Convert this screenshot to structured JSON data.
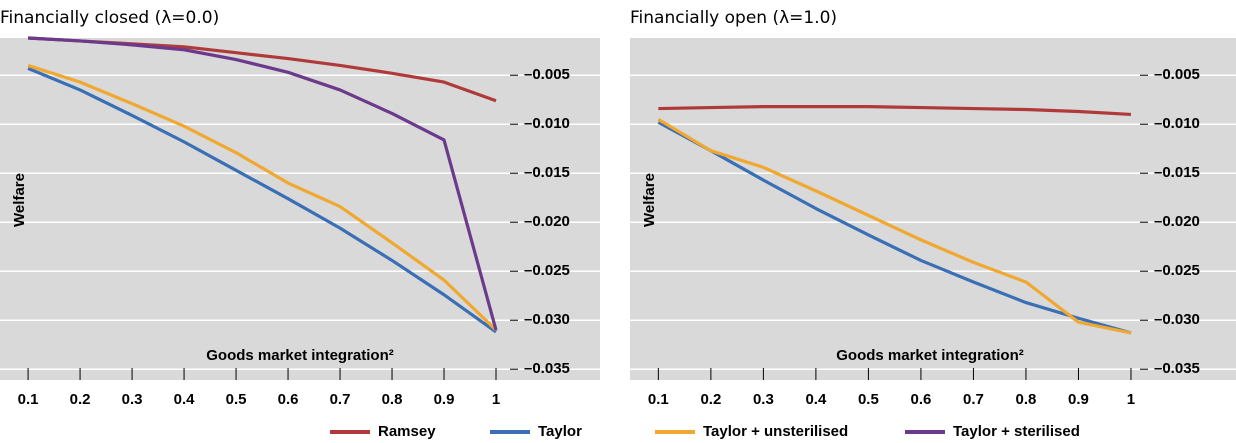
{
  "chart_data": [
    {
      "type": "line",
      "title": "Financially closed (λ=0.0)",
      "ylabel": "Welfare",
      "xlabel": "Goods market integration²",
      "x": [
        0.1,
        0.2,
        0.3,
        0.4,
        0.5,
        0.6,
        0.7,
        0.8,
        0.9,
        1
      ],
      "series": [
        {
          "name": "Ramsey",
          "color": "#b03a3a",
          "values": [
            -0.0012,
            -0.0015,
            -0.0018,
            -0.0021,
            -0.0027,
            -0.0033,
            -0.004,
            -0.0048,
            -0.0057,
            -0.0076
          ]
        },
        {
          "name": "Taylor",
          "color": "#3a6fb5",
          "values": [
            -0.0043,
            -0.0065,
            -0.0091,
            -0.0118,
            -0.0147,
            -0.0176,
            -0.0206,
            -0.0239,
            -0.0274,
            -0.0312
          ]
        },
        {
          "name": "Taylor + unsterilised",
          "color": "#f0a830",
          "values": [
            -0.004,
            -0.0057,
            -0.0079,
            -0.0102,
            -0.0129,
            -0.016,
            -0.0184,
            -0.0221,
            -0.0259,
            -0.031
          ]
        },
        {
          "name": "Taylor + sterilised",
          "color": "#6b3a8c",
          "values": [
            -0.0012,
            -0.0015,
            -0.0019,
            -0.0024,
            -0.0034,
            -0.0047,
            -0.0065,
            -0.0089,
            -0.0116,
            -0.031
          ]
        }
      ],
      "xlim": [
        0.046,
        1.2
      ],
      "xticks": [
        0.1,
        0.2,
        0.3,
        0.4,
        0.5,
        0.6,
        0.7,
        0.8,
        0.9,
        1
      ],
      "ylim": [
        -0.0361,
        -0.0012
      ],
      "yticks": [
        {
          "value": -0.005,
          "label": "–0.005"
        },
        {
          "value": -0.01,
          "label": "–0.010"
        },
        {
          "value": -0.015,
          "label": "–0.015"
        },
        {
          "value": -0.02,
          "label": "–0.020"
        },
        {
          "value": -0.025,
          "label": "–0.025"
        },
        {
          "value": -0.03,
          "label": "–0.030"
        },
        {
          "value": -0.035,
          "label": "–0.035"
        }
      ],
      "grid": true,
      "legend": "bottom"
    },
    {
      "type": "line",
      "title": "Financially open (λ=1.0)",
      "ylabel": "Welfare",
      "xlabel": "Goods market integration²",
      "x": [
        0.1,
        0.2,
        0.3,
        0.4,
        0.5,
        0.6,
        0.7,
        0.8,
        0.9,
        1
      ],
      "series": [
        {
          "name": "Ramsey",
          "color": "#b03a3a",
          "values": [
            -0.0084,
            -0.0083,
            -0.0082,
            -0.0082,
            -0.0082,
            -0.0083,
            -0.0084,
            -0.0085,
            -0.0087,
            -0.009
          ]
        },
        {
          "name": "Taylor",
          "color": "#3a6fb5",
          "values": [
            -0.0098,
            -0.0127,
            -0.0157,
            -0.0186,
            -0.0213,
            -0.0239,
            -0.0261,
            -0.0282,
            -0.0298,
            -0.0313
          ]
        },
        {
          "name": "Taylor + unsterilised",
          "color": "#f0a830",
          "values": [
            -0.0095,
            -0.0127,
            -0.0144,
            -0.0168,
            -0.0193,
            -0.0218,
            -0.0241,
            -0.0261,
            -0.0302,
            -0.0313
          ]
        }
      ],
      "xlim": [
        0.046,
        1.2
      ],
      "xticks": [
        0.1,
        0.2,
        0.3,
        0.4,
        0.5,
        0.6,
        0.7,
        0.8,
        0.9,
        1
      ],
      "ylim": [
        -0.0361,
        -0.0012
      ],
      "yticks": [
        {
          "value": -0.005,
          "label": "–0.005"
        },
        {
          "value": -0.01,
          "label": "–0.010"
        },
        {
          "value": -0.015,
          "label": "–0.015"
        },
        {
          "value": -0.02,
          "label": "–0.020"
        },
        {
          "value": -0.025,
          "label": "–0.025"
        },
        {
          "value": -0.03,
          "label": "–0.030"
        },
        {
          "value": -0.035,
          "label": "–0.035"
        }
      ],
      "grid": true
    }
  ]
}
